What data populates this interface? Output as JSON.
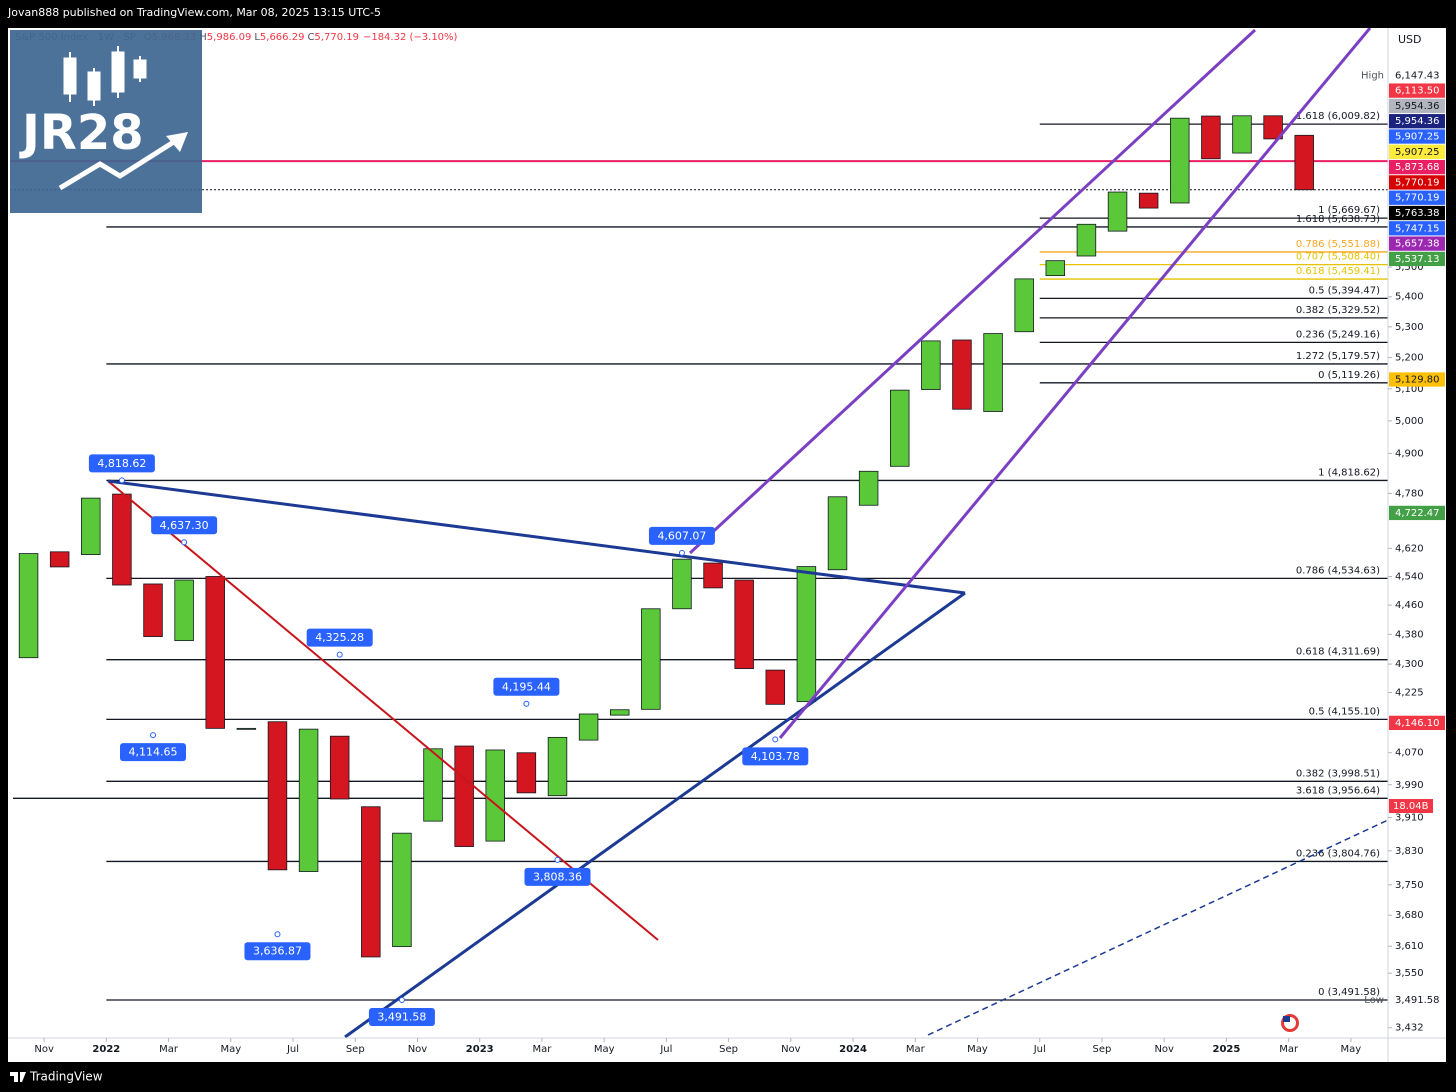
{
  "header": {
    "publisher": "Jovan888 published on TradingView.com, Mar 08, 2025 13:15 UTC-5"
  },
  "logo": {
    "text": "JR28"
  },
  "footer": {
    "brand": "TradingView"
  },
  "chart_data": {
    "type": "candlestick",
    "symbol": "S&P 500 Index · 1W · SP",
    "ohlc_legend": [
      {
        "key": "O",
        "value": "5,968.33"
      },
      {
        "key": "H",
        "value": "5,986.09"
      },
      {
        "key": "L",
        "value": "5,666.29"
      },
      {
        "key": "C",
        "value": "5,770.19"
      }
    ],
    "change": "−184.32 (−3.10%)",
    "currency": "USD",
    "x": [
      "2021-10",
      "2021-11",
      "2021-12",
      "2022-01",
      "2022-02",
      "2022-03",
      "2022-04",
      "2022-05",
      "2022-06",
      "2022-07",
      "2022-08",
      "2022-09",
      "2022-10",
      "2022-11",
      "2022-12",
      "2023-01",
      "2023-02",
      "2023-03",
      "2023-04",
      "2023-05",
      "2023-06",
      "2023-07",
      "2023-08",
      "2023-09",
      "2023-10",
      "2023-11",
      "2023-12",
      "2024-01",
      "2024-02",
      "2024-03",
      "2024-04",
      "2024-05",
      "2024-06",
      "2024-07",
      "2024-08",
      "2024-09",
      "2024-10",
      "2024-11",
      "2024-12",
      "2025-01",
      "2025-02",
      "2025-03"
    ],
    "open": [
      4317,
      4610,
      4602,
      4778,
      4519,
      4363,
      4540,
      4130,
      4149,
      3781,
      4112,
      3936,
      3609,
      3901,
      4087,
      3853,
      4070,
      3963,
      4102,
      4166,
      4181,
      4450,
      4578,
      4530,
      4284,
      4201,
      4559,
      4745,
      4861,
      5098,
      5257,
      5029,
      5284,
      5471,
      5538,
      5624,
      5758,
      5723,
      6040,
      5903,
      6041,
      5968.33
    ],
    "high": {
      "label": "High",
      "value": 6147.43,
      "value_label": "6,147.43"
    },
    "low": {
      "label": "Low",
      "value": 3491.58,
      "value_label": "3,491.58"
    },
    "close": [
      4605,
      4567,
      4766,
      4516,
      4374,
      4530,
      4132,
      4132,
      3785,
      4130,
      3955,
      3586,
      3872,
      4080,
      3840,
      4077,
      3970,
      4109,
      4169,
      4180,
      4450,
      4589,
      4508,
      4288,
      4194,
      4568,
      4770,
      4846,
      5096,
      5254,
      5036,
      5278,
      5460,
      5522,
      5648,
      5762,
      5705,
      6032,
      5882,
      6041,
      5955,
      5770.19
    ],
    "up_color": "#5bc83a",
    "down_color": "#d3161f",
    "log_scale": true,
    "grid": false,
    "xlim": [
      "2021-10",
      "2025-06"
    ],
    "xticks": [
      {
        "value": "2021-11",
        "label": "Nov"
      },
      {
        "value": "2022-01",
        "label": "2022"
      },
      {
        "value": "2022-03",
        "label": "Mar"
      },
      {
        "value": "2022-05",
        "label": "May"
      },
      {
        "value": "2022-07",
        "label": "Jul"
      },
      {
        "value": "2022-09",
        "label": "Sep"
      },
      {
        "value": "2022-11",
        "label": "Nov"
      },
      {
        "value": "2023-01",
        "label": "2023"
      },
      {
        "value": "2023-03",
        "label": "Mar"
      },
      {
        "value": "2023-05",
        "label": "May"
      },
      {
        "value": "2023-07",
        "label": "Jul"
      },
      {
        "value": "2023-09",
        "label": "Sep"
      },
      {
        "value": "2023-11",
        "label": "Nov"
      },
      {
        "value": "2024-01",
        "label": "2024"
      },
      {
        "value": "2024-03",
        "label": "Mar"
      },
      {
        "value": "2024-05",
        "label": "May"
      },
      {
        "value": "2024-07",
        "label": "Jul"
      },
      {
        "value": "2024-09",
        "label": "Sep"
      },
      {
        "value": "2024-11",
        "label": "Nov"
      },
      {
        "value": "2025-01",
        "label": "2025"
      },
      {
        "value": "2025-03",
        "label": "Mar"
      },
      {
        "value": "2025-05",
        "label": "May"
      }
    ],
    "ylim": [
      3406,
      6371
    ],
    "yticks": [
      {
        "value": 5500,
        "label": "5,500"
      },
      {
        "value": 5400,
        "label": "5,400"
      },
      {
        "value": 5300,
        "label": "5,300"
      },
      {
        "value": 5200,
        "label": "5,200"
      },
      {
        "value": 5100,
        "label": "5,100"
      },
      {
        "value": 5000,
        "label": "5,000"
      },
      {
        "value": 4900,
        "label": "4,900"
      },
      {
        "value": 4780,
        "label": "4,780"
      },
      {
        "value": 4620,
        "label": "4,620"
      },
      {
        "value": 4540,
        "label": "4,540"
      },
      {
        "value": 4460,
        "label": "4,460"
      },
      {
        "value": 4380,
        "label": "4,380"
      },
      {
        "value": 4300,
        "label": "4,300"
      },
      {
        "value": 4225,
        "label": "4,225"
      },
      {
        "value": 4070,
        "label": "4,070"
      },
      {
        "value": 3990,
        "label": "3,990"
      },
      {
        "value": 3910,
        "label": "3,910"
      },
      {
        "value": 3830,
        "label": "3,830"
      },
      {
        "value": 3750,
        "label": "3,750"
      },
      {
        "value": 3680,
        "label": "3,680"
      },
      {
        "value": 3610,
        "label": "3,610"
      },
      {
        "value": 3550,
        "label": "3,550"
      },
      {
        "value": 3432,
        "label": "3,432"
      }
    ],
    "fib_levels": [
      {
        "label": "1.618 (6,009.82)",
        "value": 6009.82,
        "from": "2024-07",
        "color": "#131722"
      },
      {
        "label": "1 (5,669.67)",
        "value": 5669.67,
        "from": "2024-07",
        "color": "#131722"
      },
      {
        "label": "1.618 (5,638.73)",
        "value": 5638.73,
        "from": "2022-01",
        "color": "#131722"
      },
      {
        "label": "0.786 (5,551.88)",
        "value": 5551.88,
        "from": "2024-07",
        "color": "#f5a623"
      },
      {
        "label": "0.707 (5,508.40)",
        "value": 5508.4,
        "from": "2024-07",
        "color": "#e6c300"
      },
      {
        "label": "0.618 (5,459.41)",
        "value": 5459.41,
        "from": "2024-07",
        "color": "#e6c300"
      },
      {
        "label": "0.5 (5,394.47)",
        "value": 5394.47,
        "from": "2024-07",
        "color": "#131722"
      },
      {
        "label": "0.382 (5,329.52)",
        "value": 5329.52,
        "from": "2024-07",
        "color": "#131722"
      },
      {
        "label": "0.236 (5,249.16)",
        "value": 5249.16,
        "from": "2024-07",
        "color": "#131722"
      },
      {
        "label": "1.272 (5,179.57)",
        "value": 5179.57,
        "from": "2022-01",
        "color": "#131722"
      },
      {
        "label": "0 (5,119.26)",
        "value": 5119.26,
        "from": "2024-07",
        "color": "#131722"
      },
      {
        "label": "1 (4,818.62)",
        "value": 4818.62,
        "from": "2022-01",
        "color": "#131722"
      },
      {
        "label": "0.786 (4,534.63)",
        "value": 4534.63,
        "from": "2022-01",
        "color": "#131722"
      },
      {
        "label": "0.618 (4,311.69)",
        "value": 4311.69,
        "from": "2022-01",
        "color": "#131722"
      },
      {
        "label": "0.5 (4,155.10)",
        "value": 4155.1,
        "from": "2022-01",
        "color": "#131722"
      },
      {
        "label": "0.382 (3,998.51)",
        "value": 3998.51,
        "from": "2022-01",
        "color": "#131722"
      },
      {
        "label": "3.618 (3,956.64)",
        "value": 3956.64,
        "from": "2021-10",
        "color": "#131722"
      },
      {
        "label": "0.236 (3,804.76)",
        "value": 3804.76,
        "from": "2022-01",
        "color": "#131722"
      },
      {
        "label": "0 (3,491.58)",
        "value": 3491.58,
        "from": "2022-01",
        "color": "#131722"
      }
    ],
    "annotations": [
      {
        "x": "2022-01",
        "value": 4818.62,
        "label": "4,818.62",
        "position": "above"
      },
      {
        "x": "2022-03",
        "value": 4637.3,
        "label": "4,637.30",
        "position": "above"
      },
      {
        "x": "2022-02",
        "value": 4114.65,
        "label": "4,114.65",
        "position": "below"
      },
      {
        "x": "2022-08",
        "value": 4325.28,
        "label": "4,325.28",
        "position": "above"
      },
      {
        "x": "2022-06",
        "value": 3636.87,
        "label": "3,636.87",
        "position": "below"
      },
      {
        "x": "2022-10",
        "value": 3491.58,
        "label": "3,491.58",
        "position": "below"
      },
      {
        "x": "2023-02",
        "value": 4195.44,
        "label": "4,195.44",
        "position": "above"
      },
      {
        "x": "2023-03",
        "value": 3808.36,
        "label": "3,808.36",
        "position": "below"
      },
      {
        "x": "2023-07",
        "value": 4607.07,
        "label": "4,607.07",
        "position": "above"
      },
      {
        "x": "2023-10",
        "value": 4103.78,
        "label": "4,103.78",
        "position": "below"
      }
    ],
    "price_labels": [
      {
        "value": 6113.5,
        "label": "6,113.50",
        "color": "#f23645"
      },
      {
        "value": 5954.36,
        "label": "5,954.36",
        "color": "#b2b5be"
      },
      {
        "value": 5954.36,
        "label": "5,954.36",
        "color": "#1a237e"
      },
      {
        "value": 5907.25,
        "label": "5,907.25",
        "color": "#2962ff"
      },
      {
        "value": 5907.25,
        "label": "5,907.25",
        "color": "#ffeb3b"
      },
      {
        "value": 5873.68,
        "label": "5,873.68",
        "color": "#e91e63",
        "line": "solid"
      },
      {
        "value": 5770.19,
        "label": "5,770.19",
        "color": "#d50000"
      },
      {
        "value": 5770.19,
        "label": "5,770.19",
        "color": "#2962ff",
        "line": "dotted"
      },
      {
        "value": 5763.38,
        "label": "5,763.38",
        "color": "#000000"
      },
      {
        "value": 5747.15,
        "label": "5,747.15",
        "color": "#2962ff"
      },
      {
        "value": 5657.38,
        "label": "5,657.38",
        "color": "#9c27b0"
      },
      {
        "value": 5537.13,
        "label": "5,537.13",
        "color": "#43a047"
      },
      {
        "value": 5129.8,
        "label": "5,129.80",
        "color": "#ffc107"
      },
      {
        "value": 4722.47,
        "label": "4,722.47",
        "color": "#43a047"
      },
      {
        "value": 4146.1,
        "label": "4,146.10",
        "color": "#f23645"
      }
    ],
    "volume_label": "18.04B"
  }
}
